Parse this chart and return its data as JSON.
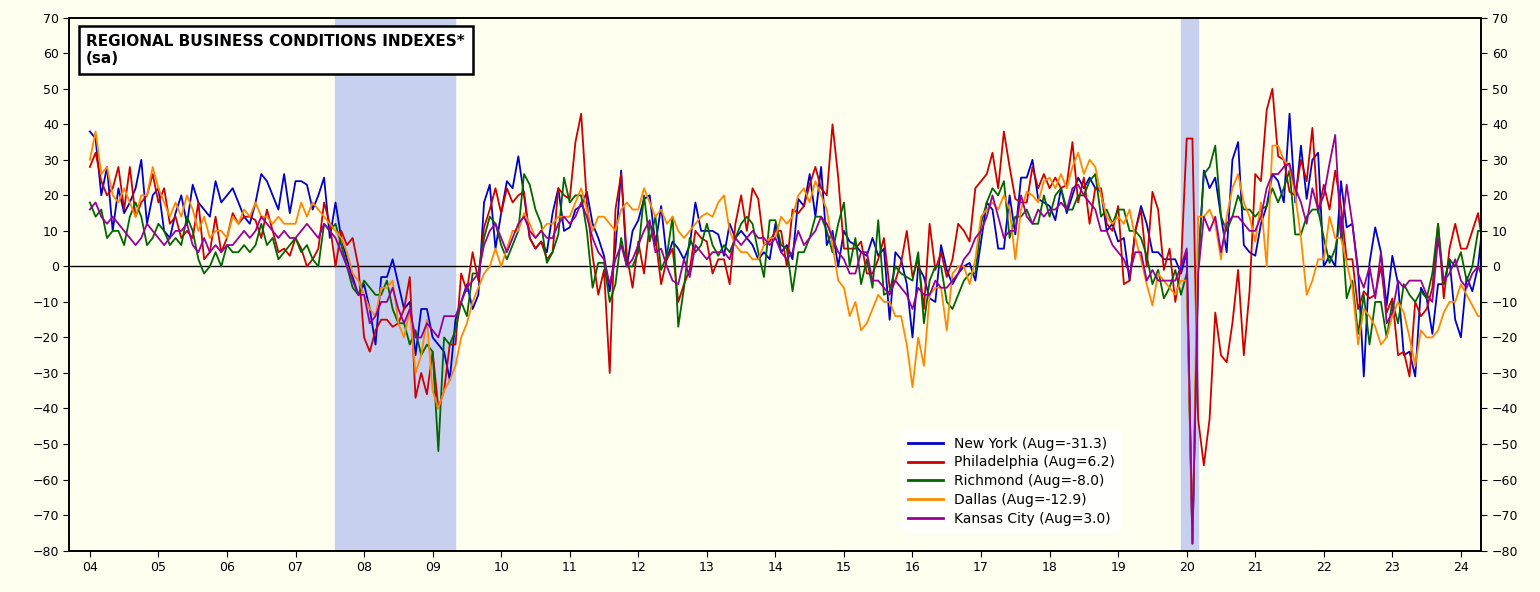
{
  "title_line1": "REGIONAL BUSINESS CONDITIONS INDEXES*",
  "title_line2": "(sa)",
  "background_color": "#FFFFF0",
  "recession1_start": 2007.583,
  "recession1_end": 2009.333,
  "recession2_start": 2019.917,
  "recession2_end": 2020.167,
  "recession_color": "#C8D0F0",
  "ylim": [
    -80,
    70
  ],
  "xlim": [
    2003.7,
    2024.3
  ],
  "yticks": [
    -80,
    -70,
    -60,
    -50,
    -40,
    -30,
    -20,
    -10,
    0,
    10,
    20,
    30,
    40,
    50,
    60,
    70
  ],
  "series_colors": {
    "ny": "#0000CC",
    "philly": "#CC0000",
    "richmond": "#006600",
    "dallas": "#FF8800",
    "kc": "#990099"
  },
  "legend_labels": [
    "New York (Aug=-31.3)",
    "Philadelphia (Aug=6.2)",
    "Richmond (Aug=-8.0)",
    "Dallas (Aug=-12.9)",
    "Kansas City (Aug=3.0)"
  ]
}
